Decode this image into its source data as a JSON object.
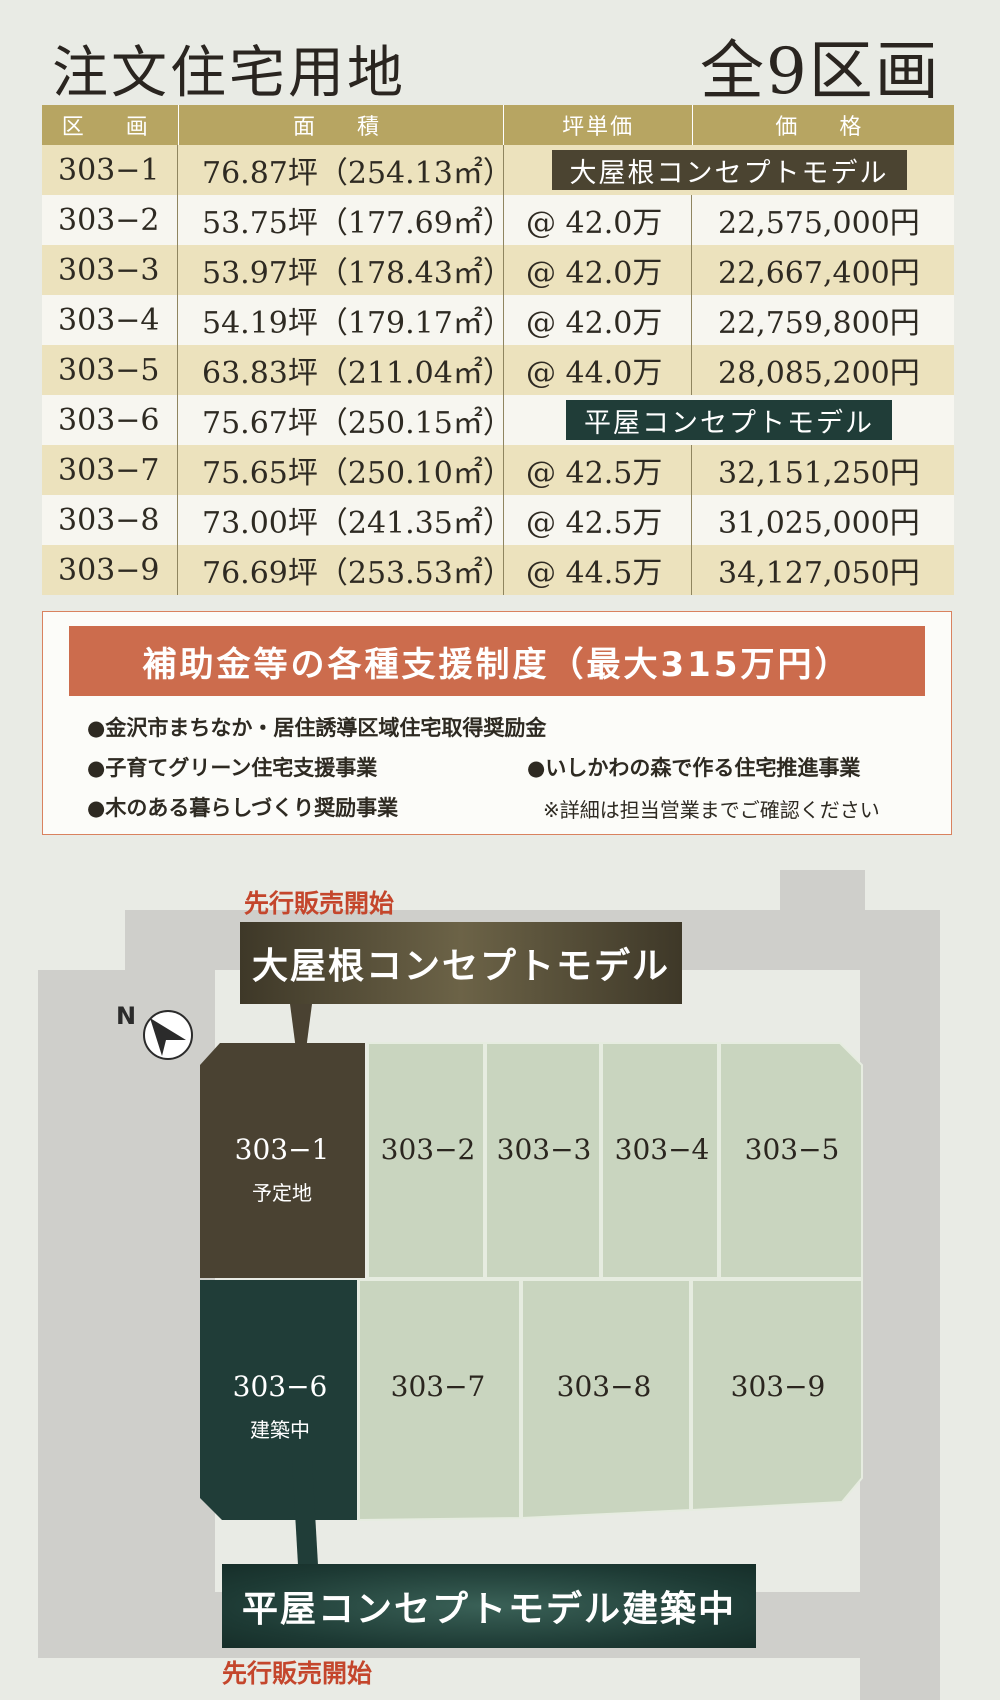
{
  "header": {
    "title": "注文住宅用地",
    "count": "全9区画"
  },
  "table": {
    "columns": [
      "区　画",
      "面　積",
      "坪単価",
      "価　格"
    ],
    "rows": [
      {
        "lot": "303−1",
        "area": "76.87坪（254.13㎡）",
        "unit_price": "",
        "price": "",
        "tag": "大屋根コンセプトモデル"
      },
      {
        "lot": "303−2",
        "area": "53.75坪（177.69㎡）",
        "unit_price": "@ 42.0万",
        "price": "22,575,000円"
      },
      {
        "lot": "303−3",
        "area": "53.97坪（178.43㎡）",
        "unit_price": "@ 42.0万",
        "price": "22,667,400円"
      },
      {
        "lot": "303−4",
        "area": "54.19坪（179.17㎡）",
        "unit_price": "@ 42.0万",
        "price": "22,759,800円"
      },
      {
        "lot": "303−5",
        "area": "63.83坪（211.04㎡）",
        "unit_price": "@ 44.0万",
        "price": "28,085,200円"
      },
      {
        "lot": "303−6",
        "area": "75.67坪（250.15㎡）",
        "unit_price": "",
        "price": "",
        "tag": "平屋コンセプトモデル"
      },
      {
        "lot": "303−7",
        "area": "75.65坪（250.10㎡）",
        "unit_price": "@ 42.5万",
        "price": "32,151,250円"
      },
      {
        "lot": "303−8",
        "area": "73.00坪（241.35㎡）",
        "unit_price": "@ 42.5万",
        "price": "31,025,000円"
      },
      {
        "lot": "303−9",
        "area": "76.69坪（253.53㎡）",
        "unit_price": "@ 44.5万",
        "price": "34,127,050円"
      }
    ]
  },
  "subsidy": {
    "banner": "補助金等の各種支援制度（最大315万円）",
    "items": [
      "●金沢市まちなか・居住誘導区域住宅取得奨励金",
      "●子育てグリーン住宅支援事業",
      "●いしかわの森で作る住宅推進事業",
      "●木のある暮らしづくり奨励事業"
    ],
    "note": "※詳細は担当営業までご確認ください"
  },
  "map": {
    "top_label": "先行販売開始",
    "top_callout": "大屋根コンセプトモデル",
    "bottom_callout": "平屋コンセプトモデル建築中",
    "bottom_label": "先行販売開始",
    "compass": "N",
    "lots": {
      "l1": "303−1",
      "l1_sub": "予定地",
      "l2": "303−2",
      "l3": "303−3",
      "l4": "303−4",
      "l5": "303−5",
      "l6": "303−6",
      "l6_sub": "建築中",
      "l7": "303−7",
      "l8": "303−8",
      "l9": "303−9"
    }
  },
  "colors": {
    "background": "#e9ebe5",
    "table_header": "#b7a562",
    "row_highlight": "#ece2bd",
    "brown_model": "#4b4431",
    "green_model": "#203d38",
    "subsidy_banner": "#cc6c4d",
    "lot_green": "#c9d5bf",
    "road": "#cfcfcb",
    "label_red": "#c4462c"
  }
}
